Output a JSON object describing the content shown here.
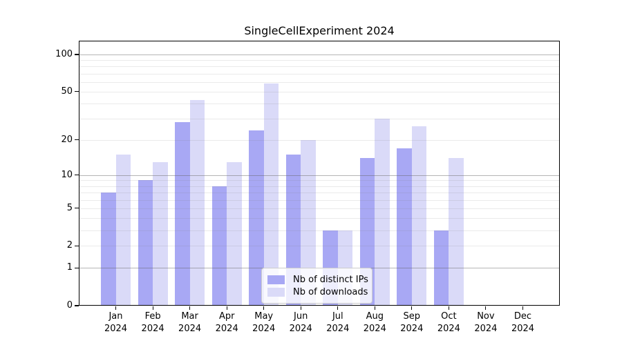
{
  "chart_data": {
    "type": "bar",
    "title": "SingleCellExperiment 2024",
    "categories": [
      "Jan 2024",
      "Feb 2024",
      "Mar 2024",
      "Apr 2024",
      "May 2024",
      "Jun 2024",
      "Jul 2024",
      "Aug 2024",
      "Sep 2024",
      "Oct 2024",
      "Nov 2024",
      "Dec 2024"
    ],
    "series": [
      {
        "name": "Nb of distinct IPs",
        "color": "#a8a8f4",
        "values": [
          7,
          9,
          28,
          8,
          24,
          15,
          3,
          14,
          17,
          3,
          0,
          0
        ]
      },
      {
        "name": "Nb of downloads",
        "color": "#dadaf8",
        "values": [
          15,
          13,
          43,
          13,
          58,
          20,
          3,
          30,
          26,
          14,
          0,
          0
        ]
      }
    ],
    "xlabel": "",
    "ylabel": "",
    "yscale": "log10(1+value)",
    "yticks": [
      0,
      1,
      2,
      5,
      10,
      20,
      50,
      100
    ],
    "ylim": [
      0,
      130
    ],
    "grid": true,
    "gridlines": {
      "major": [
        1,
        10,
        100
      ],
      "minor": [
        2,
        3,
        4,
        5,
        6,
        7,
        8,
        9,
        20,
        30,
        40,
        50,
        60,
        70,
        80,
        90
      ]
    },
    "legend_position": "lower center"
  },
  "colors": {
    "background": "#ffffff",
    "axis": "#000000",
    "major_grid": "#adadad",
    "minor_grid": "#ececec",
    "legend_border": "#cccccc",
    "distinct_ips": "#a8a8f4",
    "downloads": "#dadaf8"
  }
}
